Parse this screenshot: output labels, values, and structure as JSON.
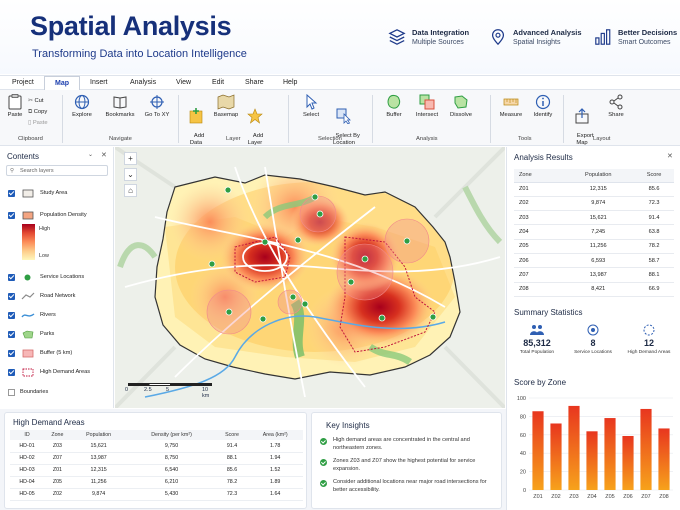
{
  "header": {
    "title": "Spatial Analysis",
    "subtitle": "Transforming Data into Location Intelligence",
    "features": [
      {
        "icon": "stack-icon",
        "title": "Data Integration",
        "subtitle": "Multiple Sources"
      },
      {
        "icon": "map-pin-icon",
        "title": "Advanced Analysis",
        "subtitle": "Spatial Insights"
      },
      {
        "icon": "bar-chart-icon",
        "title": "Better Decisions",
        "subtitle": "Smart Outcomes"
      }
    ]
  },
  "menu": [
    "Project",
    "Map",
    "Insert",
    "Analysis",
    "View",
    "Edit",
    "Share",
    "Help"
  ],
  "menu_active": "Map",
  "ribbon": {
    "paste": "Paste",
    "cut": "Cut",
    "copy": "Copy",
    "paste_small": "Paste",
    "explore": "Explore",
    "bookmarks": "Bookmarks",
    "goto": "Go To XY",
    "add_data": "Add\nData",
    "basemap": "Basemap",
    "add_layer": "Add\nLayer",
    "select": "Select",
    "select_by": "Select By\nLocation",
    "buffer": "Buffer",
    "intersect": "Intersect",
    "dissolve": "Dissolve",
    "measure": "Measure",
    "identify": "Identify",
    "export_map": "Export\nMap",
    "share": "Share",
    "groups": {
      "clipboard": "Clipboard",
      "navigate": "Navigate",
      "layer": "Layer",
      "selection": "Selection",
      "analysis": "Analysis",
      "tools": "Tools",
      "layout": "Layout"
    }
  },
  "contents": {
    "title": "Contents",
    "search_placeholder": "Search layers",
    "density_high": "High",
    "density_low": "Low",
    "layers": [
      {
        "name": "Study Area",
        "checked": true
      },
      {
        "name": "Population Density",
        "checked": true
      },
      {
        "name": "Service Locations",
        "checked": true
      },
      {
        "name": "Road Network",
        "checked": true
      },
      {
        "name": "Rivers",
        "checked": true
      },
      {
        "name": "Parks",
        "checked": true
      },
      {
        "name": "Buffer (5 km)",
        "checked": true
      },
      {
        "name": "High Demand Areas",
        "checked": true
      },
      {
        "name": "Boundaries",
        "checked": false
      }
    ]
  },
  "map": {
    "scale_labels": [
      "0",
      "2.5",
      "5",
      "10 km"
    ]
  },
  "analysis_results": {
    "title": "Analysis Results",
    "columns": [
      "Zone",
      "Population",
      "Score"
    ],
    "rows": [
      [
        "Z01",
        "12,315",
        "85.6"
      ],
      [
        "Z02",
        "9,874",
        "72.3"
      ],
      [
        "Z03",
        "15,621",
        "91.4"
      ],
      [
        "Z04",
        "7,245",
        "63.8"
      ],
      [
        "Z05",
        "11,256",
        "78.2"
      ],
      [
        "Z06",
        "6,593",
        "58.7"
      ],
      [
        "Z07",
        "13,987",
        "88.1"
      ],
      [
        "Z08",
        "8,421",
        "66.9"
      ]
    ]
  },
  "summary": {
    "title": "Summary Statistics",
    "items": [
      {
        "icon": "people-icon",
        "value": "85,312",
        "label": "Total Population"
      },
      {
        "icon": "target-icon",
        "value": "8",
        "label": "Service Locations"
      },
      {
        "icon": "dashed-circle-icon",
        "value": "12",
        "label": "High Demand Areas"
      }
    ]
  },
  "score_chart": {
    "title": "Score by Zone"
  },
  "chart_data": {
    "type": "bar",
    "title": "Score by Zone",
    "categories": [
      "Z01",
      "Z02",
      "Z03",
      "Z04",
      "Z05",
      "Z06",
      "Z07",
      "Z08"
    ],
    "values": [
      85.6,
      72.3,
      91.4,
      63.8,
      78.2,
      58.7,
      88.1,
      66.9
    ],
    "ylim": [
      0,
      100
    ],
    "yticks": [
      0,
      20,
      40,
      60,
      80,
      100
    ],
    "grid": true,
    "xlabel": "",
    "ylabel": ""
  },
  "high_demand": {
    "title": "High Demand Areas",
    "columns": [
      "ID",
      "Zone",
      "Population",
      "Density (per km²)",
      "Score",
      "Area (km²)"
    ],
    "rows": [
      [
        "HD-01",
        "Z03",
        "15,621",
        "9,750",
        "91.4",
        "1.78"
      ],
      [
        "HD-02",
        "Z07",
        "13,987",
        "8,750",
        "88.1",
        "1.94"
      ],
      [
        "HD-03",
        "Z01",
        "12,315",
        "6,540",
        "85.6",
        "1.52"
      ],
      [
        "HD-04",
        "Z05",
        "11,256",
        "6,210",
        "78.2",
        "1.89"
      ],
      [
        "HD-05",
        "Z02",
        "9,874",
        "5,430",
        "72.3",
        "1.64"
      ]
    ]
  },
  "insights": {
    "title": "Key Insights",
    "items": [
      "High demand areas are concentrated in the central and northeastern zones.",
      "Zones Z03 and Z07 show the highest potential for service expansion.",
      "Consider additional locations near major road intersections for better accessibility."
    ]
  },
  "colors": {
    "primary": "#16307a",
    "accent": "#1e40af",
    "heat_high": "#b3001e",
    "heat_low": "#fff4b8",
    "service": "#2f9e44"
  }
}
